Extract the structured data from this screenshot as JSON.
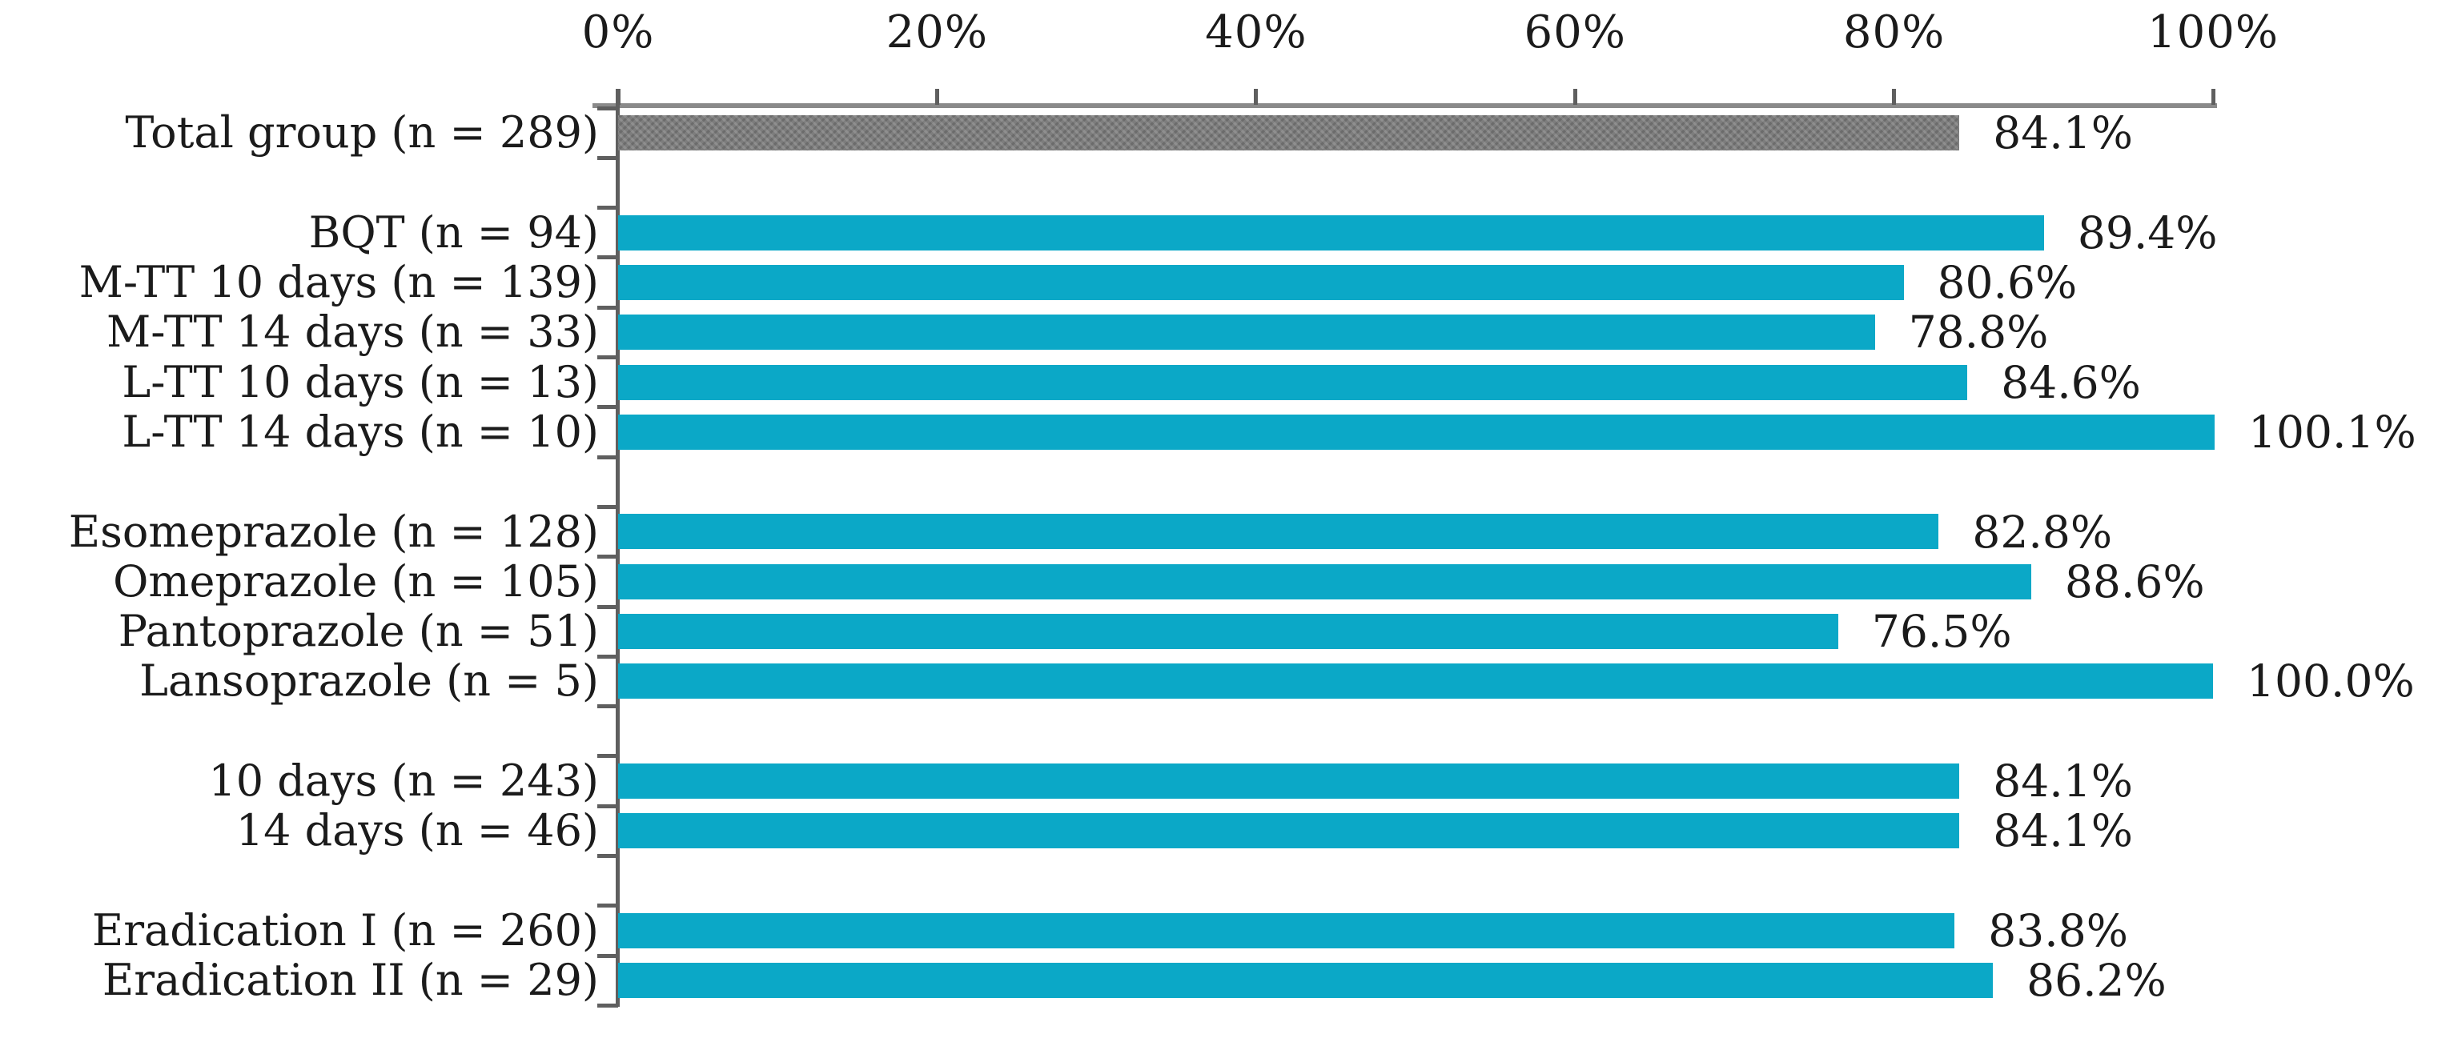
{
  "chart_data": {
    "type": "bar",
    "orientation": "horizontal",
    "title": "",
    "xlabel": "",
    "ylabel": "",
    "xlim": [
      0,
      100
    ],
    "grid": false,
    "legend": "none",
    "x_axis": {
      "position": "top",
      "unit": "percent",
      "ticks": [
        "0%",
        "20%",
        "40%",
        "60%",
        "80%",
        "100%"
      ],
      "tick_values": [
        0,
        20,
        40,
        60,
        80,
        100
      ]
    },
    "colors": {
      "default_bar": "#0ba8c7",
      "total_bar": "#7d7d7d",
      "axis": "#5f5f5f",
      "text": "#1b1b1b"
    },
    "rows": [
      {
        "label": "Total group (n = 289)",
        "value": 84.1,
        "value_label": "84.1%",
        "color": "gray"
      },
      {
        "blank": true
      },
      {
        "label": "BQT (n = 94)",
        "value": 89.4,
        "value_label": "89.4%",
        "color": "teal"
      },
      {
        "label": "M-TT 10 days (n = 139)",
        "value": 80.6,
        "value_label": "80.6%",
        "color": "teal"
      },
      {
        "label": "M-TT 14 days (n = 33)",
        "value": 78.8,
        "value_label": "78.8%",
        "color": "teal"
      },
      {
        "label": "L-TT 10 days (n = 13)",
        "value": 84.6,
        "value_label": "84.6%",
        "color": "teal"
      },
      {
        "label": "L-TT 14 days (n = 10)",
        "value": 100.1,
        "value_label": "100.1%",
        "color": "teal"
      },
      {
        "blank": true
      },
      {
        "label": "Esomeprazole (n = 128)",
        "value": 82.8,
        "value_label": "82.8%",
        "color": "teal"
      },
      {
        "label": "Omeprazole (n = 105)",
        "value": 88.6,
        "value_label": "88.6%",
        "color": "teal"
      },
      {
        "label": "Pantoprazole (n = 51)",
        "value": 76.5,
        "value_label": "76.5%",
        "color": "teal"
      },
      {
        "label": "Lansoprazole (n = 5)",
        "value": 100.0,
        "value_label": "100.0%",
        "color": "teal"
      },
      {
        "blank": true
      },
      {
        "label": "10 days (n = 243)",
        "value": 84.1,
        "value_label": "84.1%",
        "color": "teal"
      },
      {
        "label": "14 days (n = 46)",
        "value": 84.1,
        "value_label": "84.1%",
        "color": "teal"
      },
      {
        "blank": true
      },
      {
        "label": "Eradication I (n = 260)",
        "value": 83.8,
        "value_label": "83.8%",
        "color": "teal"
      },
      {
        "label": "Eradication II (n = 29)",
        "value": 86.2,
        "value_label": "86.2%",
        "color": "teal"
      }
    ]
  }
}
